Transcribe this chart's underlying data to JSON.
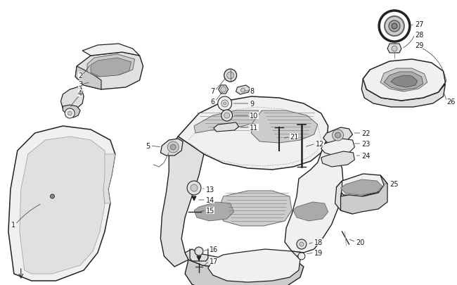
{
  "bg_color": "#ffffff",
  "line_color": "#1a1a1a",
  "label_color": "#1a1a1a",
  "fig_width": 6.5,
  "fig_height": 4.06,
  "dpi": 100,
  "font_size": 7.0,
  "leader_line_color": "#444444",
  "leader_lw": 0.55,
  "part_edge": "#222222",
  "part_edge_lw": 0.9,
  "part_face": "#f0f0f0",
  "dark_face": "#cccccc",
  "mid_face": "#e0e0e0"
}
